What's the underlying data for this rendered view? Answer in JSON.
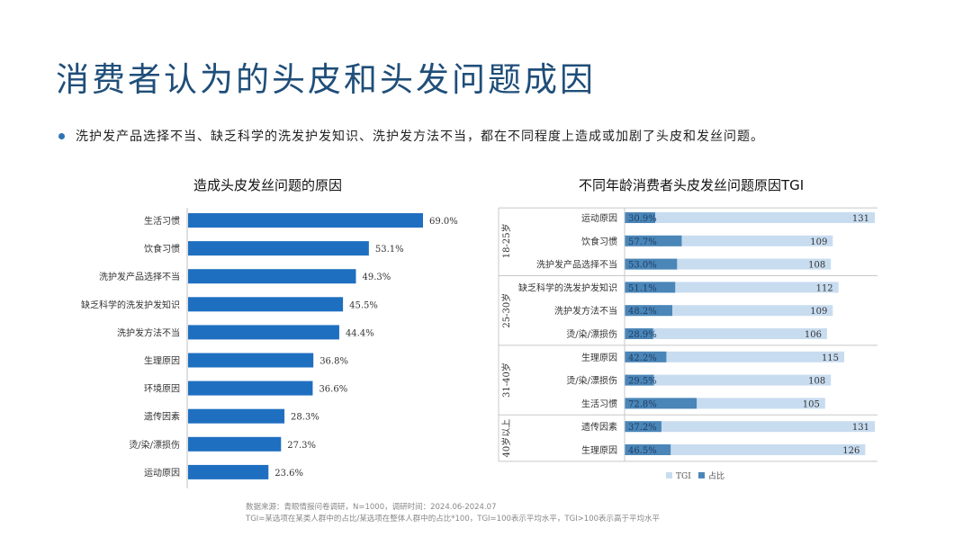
{
  "page": {
    "title": "消费者认为的头皮和头发问题成因",
    "bullet": "洗护发产品选择不当、缺乏科学的洗发护发知识、洗护发方法不当，都在不同程度上造成或加剧了头皮和发丝问题。",
    "source_line1": "数据来源：青眼情报问卷调研，N=1000，调研时间：2024.06-2024.07",
    "source_line2": "TGI=某选项在某类人群中的占比/某选项在整体人群中的占比*100，TGI=100表示平均水平，TGI>100表示高于平均水平"
  },
  "colors": {
    "bar": "#1f6fc1",
    "tgi": "#c8dcf0",
    "share": "#4a86b8",
    "title": "#1f4e79"
  },
  "chart_data": [
    {
      "type": "bar",
      "orientation": "horizontal",
      "title": "造成头皮发丝问题的原因",
      "categories": [
        "生活习惯",
        "饮食习惯",
        "洗护发产品选择不当",
        "缺乏科学的洗发护发知识",
        "洗护发方法不当",
        "生理原因",
        "环境原因",
        "遗传因素",
        "烫/染/漂损伤",
        "运动原因"
      ],
      "values": [
        69.0,
        53.1,
        49.3,
        45.5,
        44.4,
        36.8,
        36.6,
        28.3,
        27.3,
        23.6
      ],
      "value_suffix": "%"
    },
    {
      "type": "bar",
      "orientation": "horizontal",
      "title": "不同年龄消费者头皮发丝问题原因TGI",
      "legend": [
        "TGI",
        "占比"
      ],
      "groups": [
        {
          "name": "18-25岁",
          "items": [
            {
              "label": "运动原因",
              "share": "30.9%",
              "tgi": 131
            },
            {
              "label": "饮食习惯",
              "share": "57.7%",
              "tgi": 109
            },
            {
              "label": "洗护发产品选择不当",
              "share": "53.0%",
              "tgi": 108
            }
          ]
        },
        {
          "name": "25-30岁",
          "items": [
            {
              "label": "缺乏科学的洗发护发知识",
              "share": "51.1%",
              "tgi": 112
            },
            {
              "label": "洗护发方法不当",
              "share": "48.2%",
              "tgi": 109
            },
            {
              "label": "烫/染/漂损伤",
              "share": "28.9%",
              "tgi": 106
            }
          ]
        },
        {
          "name": "31-40岁",
          "items": [
            {
              "label": "生理原因",
              "share": "42.2%",
              "tgi": 115
            },
            {
              "label": "烫/染/漂损伤",
              "share": "29.5%",
              "tgi": 108
            },
            {
              "label": "生活习惯",
              "share": "72.8%",
              "tgi": 105
            }
          ]
        },
        {
          "name": "40岁以上",
          "items": [
            {
              "label": "遗传因素",
              "share": "37.2%",
              "tgi": 131
            },
            {
              "label": "生理原因",
              "share": "46.5%",
              "tgi": 126
            }
          ]
        }
      ]
    }
  ]
}
